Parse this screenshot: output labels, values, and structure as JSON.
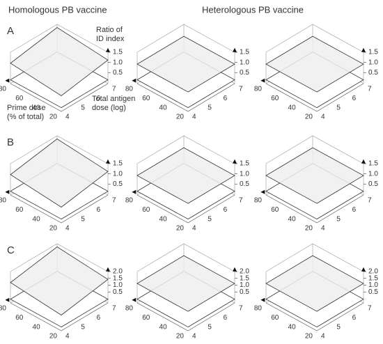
{
  "headers": [
    "Homologous PB vaccine",
    "Heterologous PB vaccine"
  ],
  "axis_titles": {
    "z": [
      "Ratio of",
      "ID index"
    ],
    "x": [
      "Total antigen",
      "dose (log)"
    ],
    "y": [
      "Prime dose",
      "(% of total)"
    ]
  },
  "xticks": [
    "4",
    "5",
    "6",
    "7"
  ],
  "yticks": [
    "20",
    "40",
    "60",
    "80"
  ],
  "rows": [
    {
      "label": "A",
      "zticks": [
        "0.5",
        "1.0",
        "1.5"
      ]
    },
    {
      "label": "B",
      "zticks": [
        "0.5",
        "1.0",
        "1.5"
      ]
    },
    {
      "label": "C",
      "zticks": [
        "0.5",
        "1.0",
        "1.5",
        "2.0"
      ]
    }
  ]
}
